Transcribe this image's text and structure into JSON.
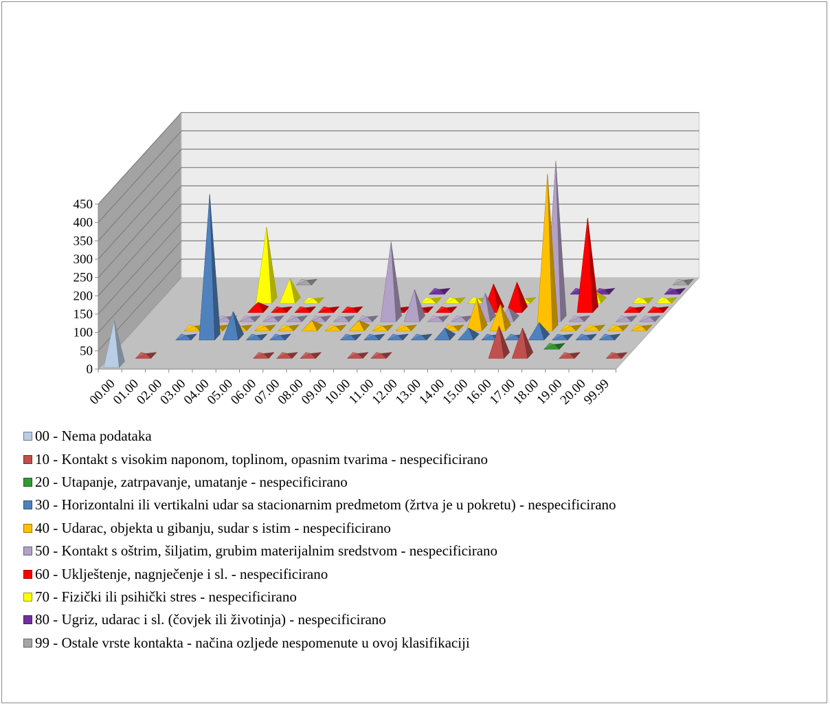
{
  "chart_data": {
    "type": "bar",
    "bar_shape": "3d-pyramid",
    "categories": [
      "00.00",
      "01.00",
      "02.00",
      "03.00",
      "04.00",
      "05.00",
      "06.00",
      "07.00",
      "08.00",
      "09.00",
      "10.00",
      "11.00",
      "12.00",
      "13.00",
      "14.00",
      "15.00",
      "16.00",
      "17.00",
      "18.00",
      "19.00",
      "20.00",
      "99.99"
    ],
    "ylim": [
      0,
      450
    ],
    "yticks": [
      "0",
      "50",
      "100",
      "150",
      "200",
      "250",
      "300",
      "350",
      "400",
      "450"
    ],
    "grid": true,
    "legend_position": "bottom",
    "series": [
      {
        "name": "00 - Nema podataka",
        "color": "#b9cde5",
        "values": [
          120,
          0,
          0,
          0,
          0,
          0,
          0,
          0,
          0,
          0,
          0,
          0,
          0,
          0,
          0,
          0,
          0,
          0,
          0,
          0,
          0,
          0
        ]
      },
      {
        "name": "10 - Kontakt s visokim naponom, toplinom, opasnim tvarima - nespecificirano",
        "color": "#c0504d",
        "values": [
          0,
          5,
          0,
          0,
          0,
          0,
          5,
          5,
          5,
          0,
          5,
          5,
          0,
          0,
          0,
          0,
          80,
          75,
          0,
          5,
          0,
          5
        ]
      },
      {
        "name": "20 - Utapanje, zatrpavanje, umatanje - nespecificirano",
        "color": "#339933",
        "values": [
          0,
          0,
          0,
          0,
          0,
          0,
          0,
          0,
          0,
          0,
          0,
          0,
          0,
          0,
          0,
          0,
          0,
          0,
          5,
          0,
          0,
          0
        ]
      },
      {
        "name": "30 - Horizontalni ili vertikalni udar sa stacionarnim predmetom (žrtva je u pokretu) - nespecificirano",
        "color": "#4f81bd",
        "values": [
          0,
          0,
          5,
          390,
          70,
          5,
          5,
          0,
          0,
          5,
          5,
          5,
          5,
          25,
          25,
          5,
          5,
          40,
          5,
          5,
          5,
          0
        ]
      },
      {
        "name": "40 - Udarac, objekta u gibanju, sudar s istim - nespecificirano",
        "color": "#ffc000",
        "values": [
          0,
          0,
          5,
          5,
          5,
          5,
          5,
          20,
          5,
          20,
          5,
          5,
          0,
          5,
          80,
          65,
          0,
          420,
          5,
          5,
          5,
          5
        ]
      },
      {
        "name": "50 - Kontakt s oštrim, šiljatim, grubim materijalnim sredstvom - nespecificirano",
        "color": "#b3a2c7",
        "values": [
          0,
          0,
          0,
          5,
          5,
          5,
          5,
          5,
          5,
          5,
          210,
          80,
          5,
          5,
          70,
          30,
          0,
          430,
          5,
          0,
          5,
          5
        ]
      },
      {
        "name": "60 - Uklještenje, nagnječenje i sl. - nespecificirano",
        "color": "#ff0000",
        "values": [
          0,
          0,
          0,
          0,
          20,
          5,
          5,
          5,
          5,
          0,
          5,
          5,
          5,
          0,
          70,
          75,
          0,
          0,
          250,
          0,
          5,
          5
        ]
      },
      {
        "name": "70 - Fizički ili psihički stres - nespecificirano",
        "color": "#ffff00",
        "values": [
          0,
          0,
          0,
          0,
          200,
          60,
          5,
          0,
          0,
          0,
          0,
          5,
          5,
          5,
          0,
          5,
          5,
          0,
          25,
          0,
          5,
          5
        ]
      },
      {
        "name": "80 - Ugriz, udarac i sl. (čovjek ili životinja) - nespecificirano",
        "color": "#7030a0",
        "values": [
          0,
          0,
          0,
          0,
          0,
          0,
          0,
          0,
          0,
          0,
          0,
          5,
          0,
          0,
          0,
          0,
          0,
          5,
          5,
          0,
          0,
          5
        ]
      },
      {
        "name": "99 - Ostale vrste kontakta - načina ozljede nespomenute u ovoj klasifikaciji",
        "color": "#a6a6a6",
        "values": [
          0,
          0,
          0,
          0,
          0,
          5,
          0,
          0,
          0,
          0,
          0,
          0,
          0,
          0,
          0,
          0,
          0,
          0,
          0,
          0,
          0,
          5
        ]
      }
    ]
  }
}
